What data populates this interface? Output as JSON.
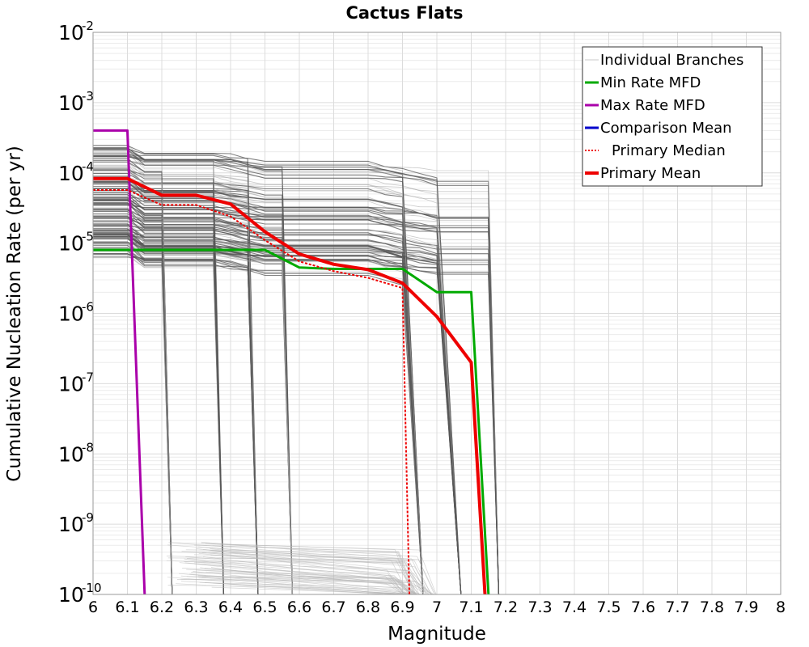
{
  "chart_data": {
    "type": "line",
    "title": "Cactus Flats",
    "xlabel": "Magnitude",
    "ylabel": "Cumulative Nucleation Rate (per yr)",
    "xlim": [
      6,
      8
    ],
    "ylim": [
      1e-10,
      0.01
    ],
    "y_scale": "log",
    "grid": true,
    "legend_position": "top-right",
    "x_ticks": [
      "6",
      "6.1",
      "6.2",
      "6.3",
      "6.4",
      "6.5",
      "6.6",
      "6.7",
      "6.8",
      "6.9",
      "7",
      "7.1",
      "7.2",
      "7.3",
      "7.4",
      "7.5",
      "7.6",
      "7.7",
      "7.8",
      "7.9",
      "8"
    ],
    "y_ticks": [
      {
        "base": "10",
        "exp": "-2"
      },
      {
        "base": "10",
        "exp": "-3"
      },
      {
        "base": "10",
        "exp": "-4"
      },
      {
        "base": "10",
        "exp": "-5"
      },
      {
        "base": "10",
        "exp": "-6"
      },
      {
        "base": "10",
        "exp": "-7"
      },
      {
        "base": "10",
        "exp": "-8"
      },
      {
        "base": "10",
        "exp": "-9"
      },
      {
        "base": "10",
        "exp": "-10"
      }
    ],
    "legend": [
      {
        "name": "Individual Branches",
        "color": "#c8c8c8",
        "style": "thin"
      },
      {
        "name": "Min Rate MFD",
        "color": "#00aa00",
        "style": "solid"
      },
      {
        "name": "Max Rate MFD",
        "color": "#aa00aa",
        "style": "solid"
      },
      {
        "name": "Comparison Mean",
        "color": "#0000cc",
        "style": "solid"
      },
      {
        "name": "Primary Median",
        "color": "#ee0000",
        "style": "dotted"
      },
      {
        "name": "Primary Mean",
        "color": "#ee0000",
        "style": "thick"
      }
    ],
    "series": [
      {
        "name": "Min Rate MFD",
        "color": "#00aa00",
        "x": [
          6.0,
          6.1,
          6.2,
          6.3,
          6.4,
          6.5,
          6.6,
          6.7,
          6.8,
          6.9,
          7.0,
          7.1,
          7.15
        ],
        "y": [
          8e-06,
          8e-06,
          8e-06,
          8e-06,
          8e-06,
          8e-06,
          4.5e-06,
          4.3e-06,
          4.3e-06,
          4.3e-06,
          2e-06,
          2e-06,
          1e-10
        ]
      },
      {
        "name": "Max Rate MFD",
        "color": "#aa00aa",
        "x": [
          6.0,
          6.1,
          6.15
        ],
        "y": [
          0.0004,
          0.0004,
          1e-10
        ]
      },
      {
        "name": "Primary Median",
        "color": "#ee0000",
        "x": [
          6.0,
          6.1,
          6.2,
          6.3,
          6.4,
          6.5,
          6.6,
          6.7,
          6.8,
          6.9,
          6.92
        ],
        "y": [
          5.7e-05,
          5.7e-05,
          3.5e-05,
          3.5e-05,
          2.4e-05,
          1.1e-05,
          5.5e-06,
          4e-06,
          3.2e-06,
          2.3e-06,
          1e-10
        ]
      },
      {
        "name": "Primary Mean",
        "color": "#ee0000",
        "x": [
          6.0,
          6.1,
          6.2,
          6.3,
          6.4,
          6.5,
          6.6,
          6.7,
          6.8,
          6.9,
          7.0,
          7.1,
          7.14
        ],
        "y": [
          8.3e-05,
          8.3e-05,
          4.8e-05,
          4.8e-05,
          3.6e-05,
          1.45e-05,
          7e-06,
          5e-06,
          4.2e-06,
          2.7e-06,
          9e-07,
          2e-07,
          1e-10
        ]
      }
    ]
  }
}
